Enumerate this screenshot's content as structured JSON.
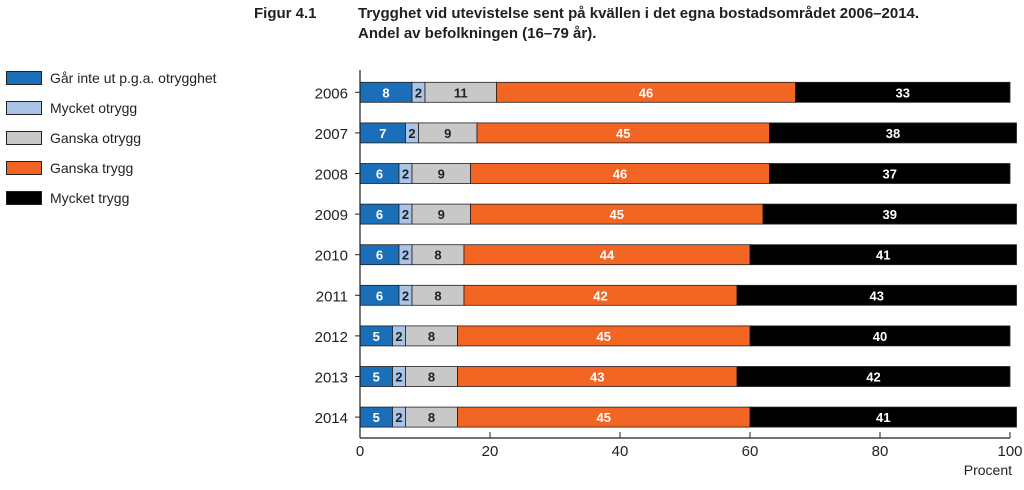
{
  "figure_label": "Figur 4.1",
  "title_lines": [
    "Trygghet vid utevistelse sent på kvällen i det egna bostadsområdet 2006–2014.",
    "Andel av befolkningen (16–79 år)."
  ],
  "colors": {
    "gar_inte_ut": "#1a6fb8",
    "mycket_otrygg": "#a8c4e6",
    "ganska_otrygg": "#c8c8c8",
    "ganska_trygg": "#f26522",
    "mycket_trygg": "#000000"
  },
  "chart_data": {
    "type": "bar",
    "orientation": "horizontal",
    "stacked": true,
    "title": "Trygghet vid utevistelse sent på kvällen i det egna bostadsområdet 2006–2014. Andel av befolkningen (16–79 år).",
    "xlabel": "Procent",
    "ylabel": "",
    "xlim": [
      0,
      100
    ],
    "xticks": [
      0,
      20,
      40,
      60,
      80,
      100
    ],
    "categories": [
      "2006",
      "2007",
      "2008",
      "2009",
      "2010",
      "2011",
      "2012",
      "2013",
      "2014"
    ],
    "series": [
      {
        "name": "Går inte ut p.g.a. otrygghet",
        "color": "#1a6fb8",
        "label_color": "#ffffff",
        "values": [
          8,
          7,
          6,
          6,
          6,
          6,
          5,
          5,
          5
        ]
      },
      {
        "name": "Mycket otrygg",
        "color": "#a8c4e6",
        "label_color": "#231f20",
        "values": [
          2,
          2,
          2,
          2,
          2,
          2,
          2,
          2,
          2
        ]
      },
      {
        "name": "Ganska otrygg",
        "color": "#c8c8c8",
        "label_color": "#231f20",
        "values": [
          11,
          9,
          9,
          9,
          8,
          8,
          8,
          8,
          8
        ]
      },
      {
        "name": "Ganska trygg",
        "color": "#f26522",
        "label_color": "#ffffff",
        "values": [
          46,
          45,
          46,
          45,
          44,
          42,
          45,
          43,
          45
        ]
      },
      {
        "name": "Mycket trygg",
        "color": "#000000",
        "label_color": "#ffffff",
        "values": [
          33,
          38,
          37,
          39,
          41,
          43,
          40,
          42,
          41
        ]
      }
    ],
    "legend_position": "left"
  }
}
